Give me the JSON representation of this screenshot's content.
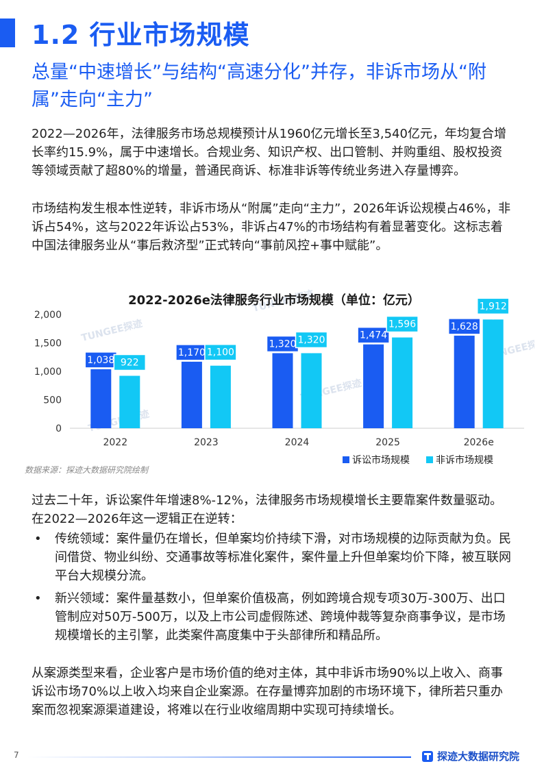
{
  "header": {
    "title": "1.2 行业市场规模",
    "subtitle": "总量“中速增长”与结构“高速分化”并存，非诉市场从“附属”走向“主力”"
  },
  "body": {
    "p1": "2022—2026年，法律服务市场总规模预计从1960亿元增长至3,540亿元，年均复合增长率约15.9%，属于中速增长。合规业务、知识产权、出口管制、并购重组、股权投资等领域贡献了超80%的增量，普通民商诉、标准非诉等传统业务进入存量博弈。",
    "p2": "市场结构发生根本性逆转，非诉市场从“附属”走向“主力”，2026年诉讼规模占46%，非诉占54%，这与2022年诉讼占53%，非诉占47%的市场结构有着显著变化。这标志着中国法律服务业从“事后救济型”正式转向“事前风控+事中赋能”。",
    "p3": "过去二十年，诉讼案件年增速8%-12%，法律服务市场规模增长主要靠案件数量驱动。在2022—2026年这一逻辑正在逆转：",
    "bullet_marker": "•",
    "bullets": [
      "传统领域：案件量仍在增长，但单案均价持续下滑，对市场规模的边际贡献为负。民间借贷、物业纠纷、交通事故等标准化案件，案件量上升但单案均价下降，被互联网平台大规模分流。",
      "新兴领域：案件量基数小，但单案价值极高，例如跨境合规专项30万-300万、出口管制应对50万-500万，以及上市公司虚假陈述、跨境仲裁等复杂商事争议，是市场规模增长的主引擎，此类案件高度集中于头部律所和精品所。"
    ],
    "p4": "从案源类型来看，企业客户是市场价值的绝对主体，其中非诉市场90%以上收入、商事诉讼市场70%以上收入均来自企业案源。在存量博弈加剧的市场环境下，律所若只重办案而忽视案源渠道建设，将难以在行业收缩周期中实现可持续增长。"
  },
  "chart_data": {
    "type": "bar",
    "title": "2022-2026e法律服务行业市场规模（单位：亿元）",
    "categories": [
      "2022",
      "2023",
      "2024",
      "2025",
      "2026e"
    ],
    "series": [
      {
        "name": "诉讼市场规模",
        "values": [
          1038,
          1170,
          1320,
          1474,
          1628
        ],
        "labels": [
          "1,038",
          "1,170",
          "1,320",
          "1,474",
          "1,628"
        ],
        "color": "#1a5cf2"
      },
      {
        "name": "非诉市场规模",
        "values": [
          922,
          1100,
          1320,
          1596,
          1912
        ],
        "labels": [
          "922",
          "1,100",
          "1,320",
          "1,596",
          "1,912"
        ],
        "color": "#12c8f5"
      }
    ],
    "yticks": [
      "0",
      "500",
      "1,000",
      "1,500",
      "2,000"
    ],
    "ylim": [
      0,
      2000
    ],
    "legend": "bottom-right",
    "grid": false
  },
  "watermarks": [
    "TUNGEE探迹",
    "TUNGEE探迹",
    "TUNGEE探迹",
    "TUNGEE探迹",
    "TUNGEE探迹"
  ],
  "source": "数据来源：探迹大数据研究院绘制",
  "footer": {
    "page_number": "7",
    "brand": "探迹大数据研究院"
  }
}
